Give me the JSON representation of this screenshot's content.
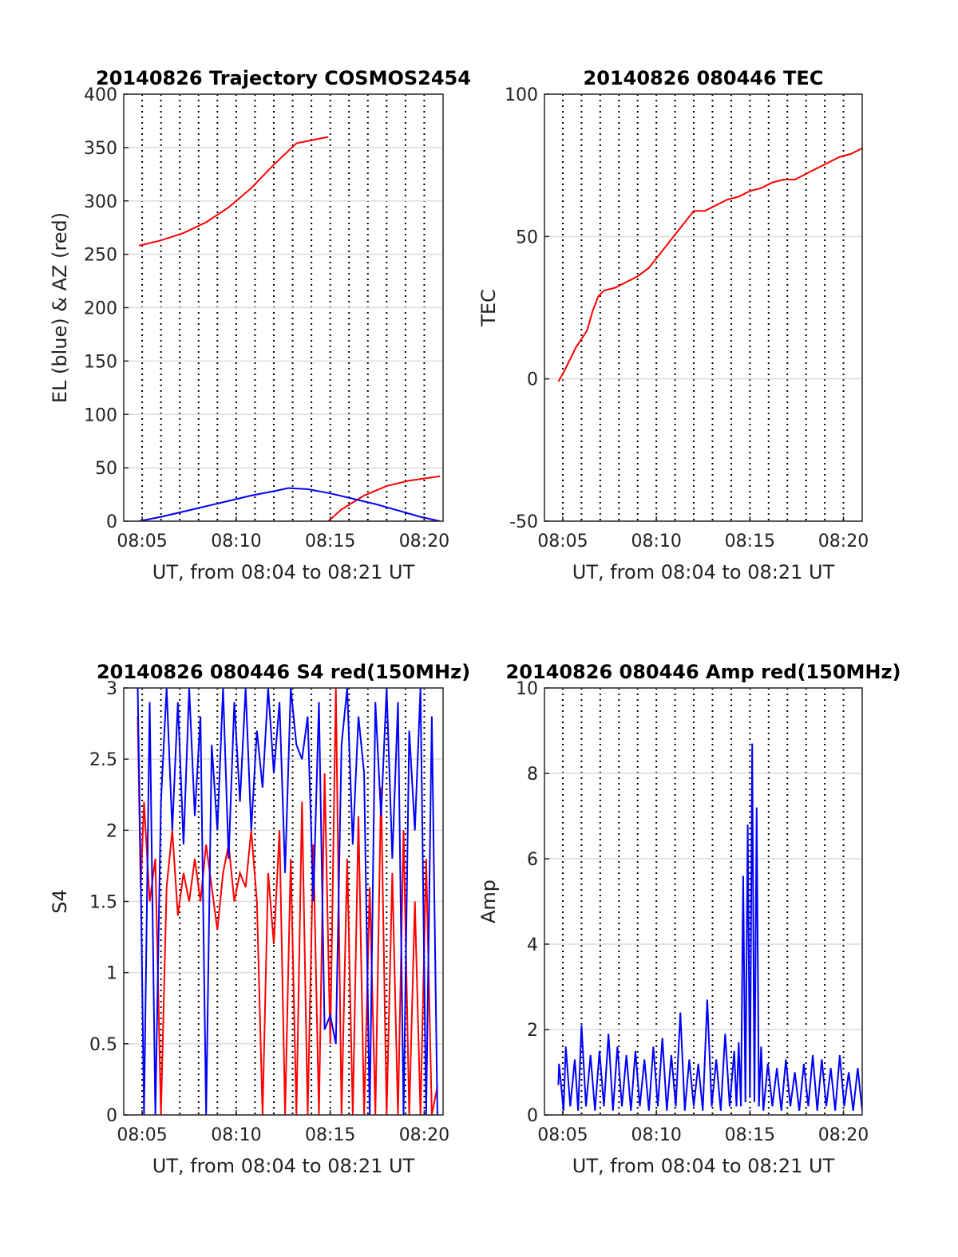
{
  "chart_data": [
    {
      "id": "trajectory",
      "type": "line",
      "title": "20140826 Trajectory COSMOS2454",
      "xlabel": "UT, from 08:04 to 08:21 UT",
      "ylabel": "EL (blue) & AZ (red)",
      "xlim": [
        8.067,
        8.35
      ],
      "ylim": [
        0,
        400
      ],
      "xticks": [
        {
          "label": "08:05",
          "value": 8.0833
        },
        {
          "label": "08:10",
          "value": 8.1667
        },
        {
          "label": "08:15",
          "value": 8.25
        },
        {
          "label": "08:20",
          "value": 8.3333
        }
      ],
      "yticks": [
        0,
        50,
        100,
        150,
        200,
        250,
        300,
        350,
        400
      ],
      "grid": true,
      "series": [
        {
          "color": "#ff0000",
          "x": [
            8.0806,
            8.1,
            8.12,
            8.14,
            8.16,
            8.18,
            8.2,
            8.22,
            8.2483,
            8.2483,
            8.2483,
            8.26,
            8.28,
            8.3,
            8.32,
            8.3472
          ],
          "y": [
            258,
            263,
            270,
            280,
            294,
            312,
            334,
            354,
            360,
            null,
            0,
            11,
            24,
            33,
            38,
            42
          ]
        },
        {
          "color": "#0000ff",
          "x": [
            8.0806,
            8.1,
            8.12,
            8.14,
            8.16,
            8.18,
            8.2,
            8.213,
            8.23,
            8.25,
            8.27,
            8.29,
            8.31,
            8.33,
            8.3472
          ],
          "y": [
            0,
            4,
            9,
            14,
            19,
            24,
            28,
            31,
            30,
            26,
            21,
            16,
            10,
            4,
            0
          ]
        }
      ]
    },
    {
      "id": "tec",
      "type": "line",
      "title": "20140826 080446 TEC",
      "xlabel": "UT, from 08:04 to 08:21 UT",
      "ylabel": "TEC",
      "xlim": [
        8.067,
        8.35
      ],
      "ylim": [
        -50,
        100
      ],
      "xticks": [
        {
          "label": "08:05",
          "value": 8.0833
        },
        {
          "label": "08:10",
          "value": 8.1667
        },
        {
          "label": "08:15",
          "value": 8.25
        },
        {
          "label": "08:20",
          "value": 8.3333
        }
      ],
      "yticks": [
        -50,
        0,
        50,
        100
      ],
      "grid": true,
      "series": [
        {
          "color": "#ff0000",
          "x": [
            8.0794,
            8.085,
            8.09,
            8.095,
            8.1,
            8.105,
            8.11,
            8.115,
            8.12,
            8.13,
            8.14,
            8.15,
            8.16,
            8.17,
            8.18,
            8.19,
            8.2,
            8.21,
            8.22,
            8.23,
            8.24,
            8.25,
            8.26,
            8.27,
            8.28,
            8.29,
            8.3,
            8.31,
            8.32,
            8.33,
            8.34,
            8.35
          ],
          "y": [
            -1,
            3,
            7,
            11,
            14,
            17,
            24,
            29,
            31,
            32,
            34,
            36,
            39,
            44,
            49,
            54,
            59,
            59,
            61,
            63,
            64,
            66,
            67,
            69,
            70,
            70,
            72,
            74,
            76,
            78,
            79,
            81
          ]
        }
      ]
    },
    {
      "id": "s4",
      "type": "line",
      "title": "20140826 080446 S4 red(150MHz)",
      "xlabel": "UT, from 08:04 to 08:21 UT",
      "ylabel": "S4",
      "xlim": [
        8.067,
        8.35
      ],
      "ylim": [
        0,
        3
      ],
      "xticks": [
        {
          "label": "08:05",
          "value": 8.0833
        },
        {
          "label": "08:10",
          "value": 8.1667
        },
        {
          "label": "08:15",
          "value": 8.25
        },
        {
          "label": "08:20",
          "value": 8.3333
        }
      ],
      "yticks": [
        0,
        0.5,
        1,
        1.5,
        2,
        2.5,
        3
      ],
      "grid": true,
      "series": [
        {
          "color": "#ff0000",
          "x": [
            8.0794,
            8.082,
            8.085,
            8.09,
            8.095,
            8.1,
            8.105,
            8.11,
            8.115,
            8.12,
            8.125,
            8.13,
            8.135,
            8.14,
            8.145,
            8.15,
            8.155,
            8.16,
            8.165,
            8.17,
            8.175,
            8.18,
            8.185,
            8.19,
            8.195,
            8.2,
            8.205,
            8.21,
            8.215,
            8.22,
            8.225,
            8.23,
            8.235,
            8.24,
            8.245,
            8.25,
            8.255,
            8.26,
            8.265,
            8.27,
            8.275,
            8.28,
            8.285,
            8.29,
            8.295,
            8.3,
            8.305,
            8.31,
            8.315,
            8.32,
            8.325,
            8.33,
            8.335,
            8.34,
            8.345
          ],
          "y": [
            2.8,
            1.6,
            2.2,
            1.5,
            1.8,
            0,
            1.6,
            2.0,
            1.4,
            1.7,
            1.5,
            1.8,
            1.5,
            1.9,
            1.6,
            1.3,
            1.7,
            1.9,
            1.5,
            1.7,
            1.6,
            2.0,
            1.5,
            0,
            1.7,
            1.2,
            2.0,
            0,
            1.8,
            0,
            2.2,
            0,
            1.9,
            0,
            2.4,
            0.5,
            3.0,
            0,
            1.8,
            0,
            2.1,
            0,
            1.6,
            0,
            2.3,
            0,
            1.7,
            0,
            2.0,
            0,
            1.5,
            0,
            1.8,
            0,
            0.2
          ]
        },
        {
          "color": "#0000ff",
          "x": [
            8.0794,
            8.082,
            8.085,
            8.09,
            8.095,
            8.1,
            8.105,
            8.11,
            8.115,
            8.12,
            8.125,
            8.13,
            8.135,
            8.14,
            8.145,
            8.15,
            8.155,
            8.16,
            8.165,
            8.17,
            8.175,
            8.18,
            8.185,
            8.19,
            8.195,
            8.2,
            8.205,
            8.21,
            8.215,
            8.22,
            8.225,
            8.23,
            8.235,
            8.24,
            8.245,
            8.25,
            8.255,
            8.26,
            8.265,
            8.27,
            8.275,
            8.28,
            8.285,
            8.29,
            8.295,
            8.3,
            8.305,
            8.31,
            8.315,
            8.32,
            8.325,
            8.33,
            8.335,
            8.34,
            8.345
          ],
          "y": [
            3.0,
            1.7,
            0,
            2.9,
            0,
            2.2,
            3.0,
            2.0,
            2.9,
            1.9,
            3.0,
            2.1,
            2.8,
            0,
            2.6,
            2.0,
            3.0,
            1.8,
            2.9,
            2.2,
            3.0,
            2.0,
            2.7,
            2.3,
            3.0,
            2.4,
            2.9,
            1.7,
            3.0,
            2.6,
            2.5,
            2.8,
            1.5,
            2.9,
            0.6,
            0.7,
            0.5,
            2.6,
            3.0,
            1.9,
            2.8,
            2.4,
            0,
            2.9,
            2.1,
            3.0,
            1.8,
            2.9,
            0,
            2.7,
            2.0,
            3.0,
            0,
            2.8,
            0
          ]
        }
      ]
    },
    {
      "id": "amp",
      "type": "line",
      "title": "20140826 080446 Amp red(150MHz)",
      "xlabel": "UT, from 08:04 to 08:21 UT",
      "ylabel": "Amp",
      "xlim": [
        8.067,
        8.35
      ],
      "ylim": [
        0,
        10
      ],
      "xticks": [
        {
          "label": "08:05",
          "value": 8.0833
        },
        {
          "label": "08:10",
          "value": 8.1667
        },
        {
          "label": "08:15",
          "value": 8.25
        },
        {
          "label": "08:20",
          "value": 8.3333
        }
      ],
      "yticks": [
        0,
        2,
        4,
        6,
        8,
        10
      ],
      "grid": true,
      "series": [
        {
          "color": "#0000ff",
          "x": [
            8.0794,
            8.08,
            8.084,
            8.086,
            8.09,
            8.094,
            8.097,
            8.1,
            8.104,
            8.108,
            8.112,
            8.116,
            8.12,
            8.124,
            8.128,
            8.132,
            8.136,
            8.14,
            8.144,
            8.148,
            8.152,
            8.156,
            8.16,
            8.164,
            8.168,
            8.172,
            8.176,
            8.18,
            8.184,
            8.188,
            8.192,
            8.196,
            8.2,
            8.204,
            8.208,
            8.212,
            8.216,
            8.22,
            8.224,
            8.228,
            8.232,
            8.236,
            8.238,
            8.24,
            8.242,
            8.244,
            8.246,
            8.248,
            8.25,
            8.252,
            8.254,
            8.256,
            8.258,
            8.26,
            8.262,
            8.266,
            8.27,
            8.274,
            8.278,
            8.282,
            8.286,
            8.29,
            8.294,
            8.298,
            8.302,
            8.306,
            8.31,
            8.314,
            8.318,
            8.322,
            8.326,
            8.33,
            8.334,
            8.338,
            8.342,
            8.346,
            8.35
          ],
          "y": [
            0.7,
            1.2,
            0.1,
            1.6,
            0.2,
            1.3,
            0.1,
            2.1,
            0.2,
            1.4,
            0.1,
            1.5,
            0.2,
            1.9,
            0.1,
            1.6,
            0.2,
            1.4,
            0.1,
            1.5,
            0.2,
            1.3,
            0.1,
            1.6,
            0.2,
            1.8,
            0.1,
            1.4,
            0.2,
            2.4,
            0.1,
            1.3,
            0.2,
            1.2,
            0.1,
            2.7,
            0.2,
            1.3,
            0.1,
            1.9,
            0.2,
            1.5,
            0.2,
            1.7,
            0.2,
            5.6,
            0.3,
            6.8,
            0.4,
            8.7,
            0.3,
            7.2,
            0.2,
            1.6,
            0.1,
            1.2,
            0.2,
            1.1,
            0.1,
            1.3,
            0.2,
            1.0,
            0.1,
            1.2,
            0.2,
            1.4,
            0.1,
            1.3,
            0.2,
            1.1,
            0.1,
            1.4,
            0.2,
            1.0,
            0.1,
            1.1,
            0.1
          ]
        }
      ]
    }
  ]
}
